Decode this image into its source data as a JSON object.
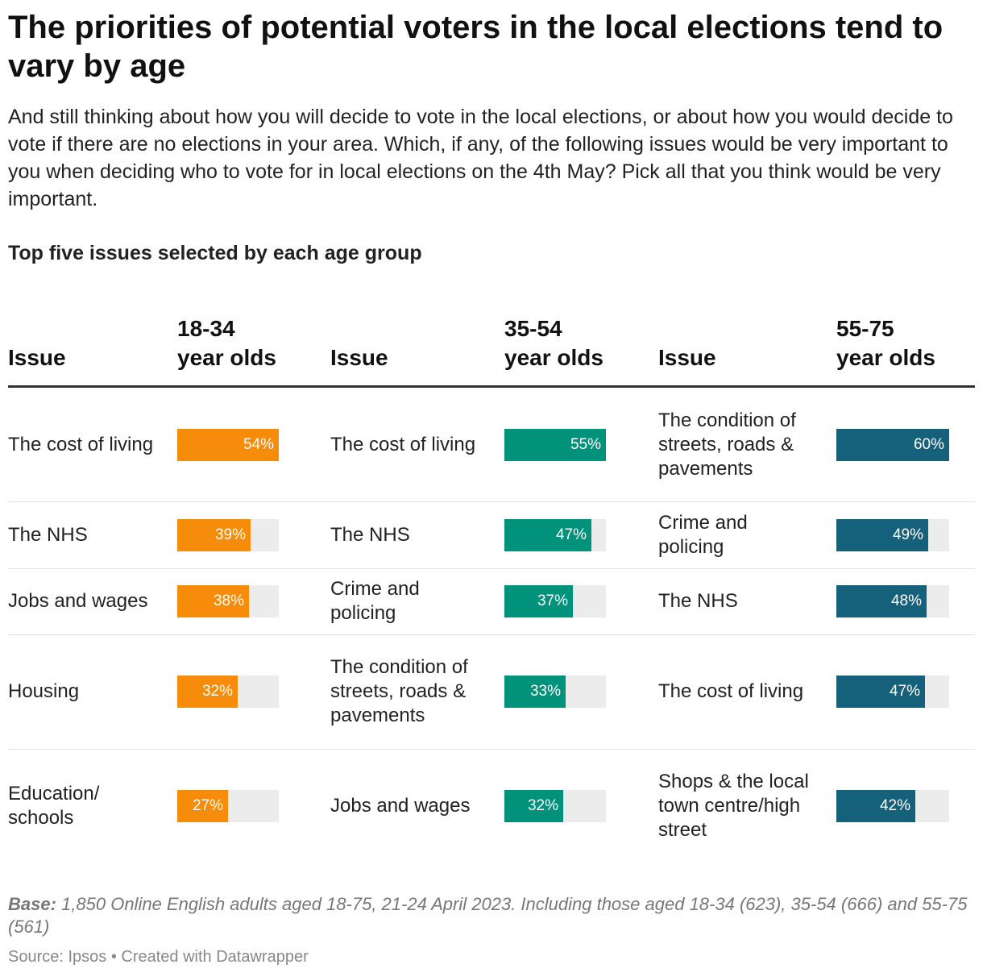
{
  "title": "The priorities of potential voters in the local elections tend to vary by age",
  "description": "And still thinking about how you will decide to vote in the local elections, or about how you would decide to vote if there are no elections in your area. Which, if any, of the following issues would be very important to you when deciding who to vote for in local elections on the 4th May? Pick all that you think would be very important.",
  "subtitle": "Top five issues selected by each age group",
  "notes": {
    "label": "Base:",
    "text": "1,850 Online English adults aged 18-75, 21-24 April 2023. Including those aged 18-34 (623), 35-54 (666) and 55-75 (561)"
  },
  "source": "Source: Ipsos • Created with Datawrapper",
  "chart_data": {
    "type": "table",
    "value_unit": "%",
    "max_value": 100,
    "groups": [
      {
        "issue_header": "Issue",
        "value_header_line1": "18-34",
        "value_header_line2": "year olds",
        "color": "#f78b0a",
        "rows": [
          {
            "issue": "The cost of living",
            "value": 54,
            "label": "54%"
          },
          {
            "issue": "The NHS",
            "value": 39,
            "label": "39%"
          },
          {
            "issue": "Jobs and wages",
            "value": 38,
            "label": "38%"
          },
          {
            "issue": "Housing",
            "value": 32,
            "label": "32%"
          },
          {
            "issue": "Education/ schools",
            "value": 27,
            "label": "27%"
          }
        ]
      },
      {
        "issue_header": "Issue",
        "value_header_line1": "35-54",
        "value_header_line2": "year olds",
        "color": "#00927a",
        "rows": [
          {
            "issue": "The cost of living",
            "value": 55,
            "label": "55%"
          },
          {
            "issue": "The NHS",
            "value": 47,
            "label": "47%"
          },
          {
            "issue": "Crime and policing",
            "value": 37,
            "label": "37%"
          },
          {
            "issue": "The condition of streets, roads & pavements",
            "value": 33,
            "label": "33%"
          },
          {
            "issue": "Jobs and wages",
            "value": 32,
            "label": "32%"
          }
        ]
      },
      {
        "issue_header": "Issue",
        "value_header_line1": "55-75",
        "value_header_line2": "year olds",
        "color": "#15607a",
        "rows": [
          {
            "issue": "The condition of streets, roads & pavements",
            "value": 60,
            "label": "60%"
          },
          {
            "issue": "Crime and policing",
            "value": 49,
            "label": "49%"
          },
          {
            "issue": "The NHS",
            "value": 48,
            "label": "48%"
          },
          {
            "issue": "The cost of living",
            "value": 47,
            "label": "47%"
          },
          {
            "issue": "Shops & the local town centre/high street",
            "value": 42,
            "label": "42%"
          }
        ]
      }
    ]
  }
}
